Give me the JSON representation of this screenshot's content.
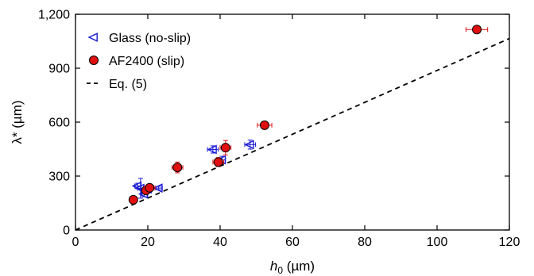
{
  "chart_data": {
    "type": "scatter",
    "xlabel": {
      "main": "h",
      "sub": "0",
      "unit": " (µm)"
    },
    "ylabel": "λ* (µm)",
    "xlim": [
      0,
      120
    ],
    "ylim": [
      0,
      1200
    ],
    "x_ticks": [
      {
        "value": 0,
        "label": "0"
      },
      {
        "value": 20,
        "label": "20"
      },
      {
        "value": 40,
        "label": "40"
      },
      {
        "value": 60,
        "label": "60"
      },
      {
        "value": 80,
        "label": "80"
      },
      {
        "value": 100,
        "label": "100"
      },
      {
        "value": 120,
        "label": "120"
      }
    ],
    "y_ticks": [
      {
        "value": 0,
        "label": "0"
      },
      {
        "value": 300,
        "label": "300"
      },
      {
        "value": 600,
        "label": "600"
      },
      {
        "value": 900,
        "label": "900"
      },
      {
        "value": 1200,
        "label": "1,200"
      }
    ],
    "grid": false,
    "legend_position": "top-left",
    "series": [
      {
        "name": "Glass (no-slip)",
        "marker": "triangle-left",
        "color": "#1a1ad6",
        "points": [
          {
            "x": 17.2,
            "y": 245,
            "xerr": 0.8,
            "yerr": 15
          },
          {
            "x": 18.0,
            "y": 232,
            "xerr": 0.8,
            "yerr": 55
          },
          {
            "x": 19.0,
            "y": 200,
            "xerr": 0.8,
            "yerr": 15
          },
          {
            "x": 20.0,
            "y": 228,
            "xerr": 0.8,
            "yerr": 15
          },
          {
            "x": 23.0,
            "y": 233,
            "xerr": 1.0,
            "yerr": 10
          },
          {
            "x": 38.0,
            "y": 448,
            "xerr": 1.5,
            "yerr": 20
          },
          {
            "x": 40.5,
            "y": 390,
            "xerr": 1.0,
            "yerr": 20
          },
          {
            "x": 48.3,
            "y": 475,
            "xerr": 1.5,
            "yerr": 25
          }
        ]
      },
      {
        "name": "AF2400 (slip)",
        "marker": "circle",
        "color": "#e01010",
        "points": [
          {
            "x": 16.0,
            "y": 168,
            "xerr": 1.0,
            "yerr": 15
          },
          {
            "x": 19.5,
            "y": 220,
            "xerr": 1.0,
            "yerr": 20
          },
          {
            "x": 20.5,
            "y": 235,
            "xerr": 1.5,
            "yerr": 15
          },
          {
            "x": 28.2,
            "y": 348,
            "xerr": 1.5,
            "yerr": 30
          },
          {
            "x": 39.5,
            "y": 378,
            "xerr": 1.5,
            "yerr": 25
          },
          {
            "x": 41.5,
            "y": 458,
            "xerr": 1.5,
            "yerr": 40
          },
          {
            "x": 52.3,
            "y": 583,
            "xerr": 2.0,
            "yerr": 15
          },
          {
            "x": 111.0,
            "y": 1115,
            "xerr": 3.0,
            "yerr": 15
          }
        ]
      },
      {
        "name": "Eq. (5)",
        "style": "dashed-line",
        "color": "#000000",
        "points": [
          {
            "x": 0,
            "y": 0
          },
          {
            "x": 120,
            "y": 1065
          }
        ]
      }
    ]
  }
}
